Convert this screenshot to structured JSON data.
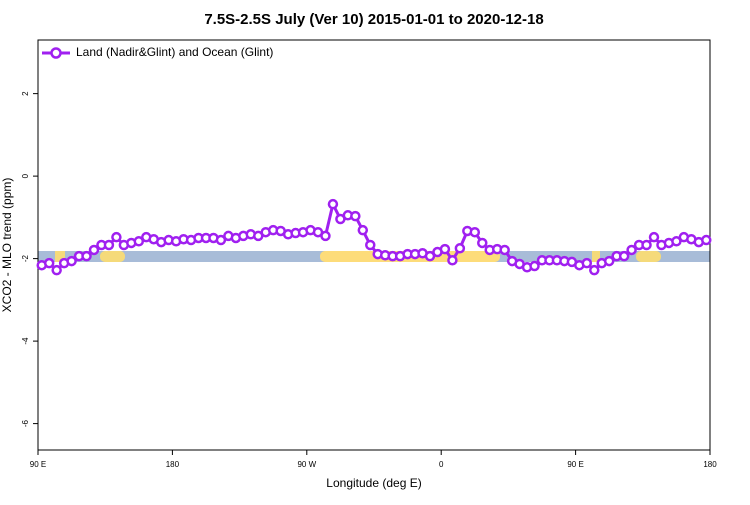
{
  "chart_data": {
    "type": "line",
    "title": "7.5S-2.5S July (Ver 10)   2015-01-01 to 2020-12-18",
    "x_label": "Longitude (deg E)",
    "y_label": "XCO2 - MLO trend (ppm)",
    "xlim": [
      90,
      540
    ],
    "xticks": [
      {
        "value": 90,
        "label": "90 E"
      },
      180,
      {
        "value": 270,
        "label": "90 W"
      },
      {
        "value": 360,
        "label": "0"
      },
      {
        "value": 450,
        "label": "90 E"
      },
      {
        "value": 540,
        "label": "180"
      }
    ],
    "ylim": [
      -6.64,
      3.3
    ],
    "yticks": [
      -6,
      -4,
      -2,
      0,
      2
    ],
    "legend": "top-left",
    "x": [
      92.5,
      97.5,
      102.5,
      107.5,
      112.5,
      117.5,
      122.5,
      127.5,
      132.5,
      137.5,
      142.5,
      147.5,
      152.5,
      157.5,
      162.5,
      167.5,
      172.5,
      177.5,
      182.5,
      187.5,
      192.5,
      197.5,
      202.5,
      207.5,
      212.5,
      217.5,
      222.5,
      227.5,
      232.5,
      237.5,
      242.5,
      247.5,
      252.5,
      257.5,
      262.5,
      267.5,
      272.5,
      277.5,
      282.5,
      287.5,
      292.5,
      297.5,
      302.5,
      307.5,
      312.5,
      317.5,
      322.5,
      327.5,
      332.5,
      337.5,
      342.5,
      347.5,
      352.5,
      357.5,
      362.5,
      367.5,
      372.5,
      377.5,
      382.5,
      387.5,
      392.5,
      397.5,
      402.5,
      407.5,
      412.5,
      417.5,
      422.5,
      427.5,
      432.5,
      437.5,
      442.5,
      447.5,
      452.5,
      457.5,
      462.5,
      467.5,
      472.5,
      477.5,
      482.5,
      487.5,
      492.5,
      497.5,
      502.5,
      507.5,
      512.5,
      517.5,
      522.5,
      527.5,
      532.5,
      537.5
    ],
    "series": [
      {
        "name": "Land (Nadir&Glint) and Ocean (Glint)",
        "color": "#a020f0",
        "values": [
          -2.16,
          -2.11,
          -2.28,
          -2.11,
          -2.06,
          -1.94,
          -1.94,
          -1.79,
          -1.67,
          -1.67,
          -1.48,
          -1.67,
          -1.62,
          -1.58,
          -1.48,
          -1.53,
          -1.6,
          -1.55,
          -1.58,
          -1.53,
          -1.55,
          -1.5,
          -1.5,
          -1.5,
          -1.55,
          -1.45,
          -1.5,
          -1.45,
          -1.41,
          -1.45,
          -1.36,
          -1.31,
          -1.33,
          -1.41,
          -1.38,
          -1.36,
          -1.31,
          -1.36,
          -1.45,
          -0.68,
          -1.04,
          -0.95,
          -0.97,
          -1.31,
          -1.67,
          -1.89,
          -1.92,
          -1.94,
          -1.94,
          -1.89,
          -1.89,
          -1.87,
          -1.94,
          -1.84,
          -1.77,
          -2.04,
          -1.75,
          -1.33,
          -1.36,
          -1.62,
          -1.79,
          -1.77,
          -1.79,
          -2.06,
          -2.13,
          -2.21,
          -2.18,
          -2.04,
          -2.04,
          -2.04,
          -2.06,
          -2.08,
          -2.16,
          -2.11,
          -2.28,
          -2.11,
          -2.06,
          -1.94,
          -1.94,
          -1.79,
          -1.67,
          -1.67,
          -1.48,
          -1.67,
          -1.62,
          -1.58,
          -1.48,
          -1.53,
          -1.6,
          -1.55
        ]
      }
    ]
  }
}
